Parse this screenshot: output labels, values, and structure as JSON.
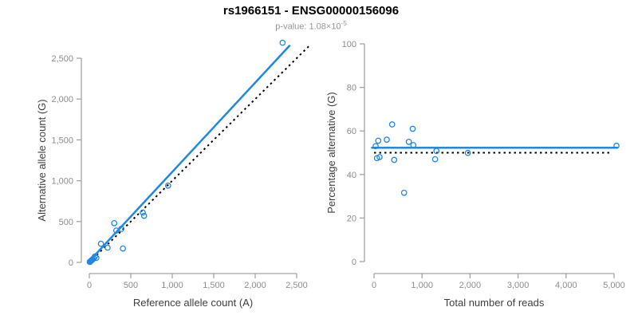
{
  "header": {
    "title": "rs1966151 - ENSG00000156096",
    "pvalue_prefix": "p-value: 1.08×10",
    "pvalue_exponent": "-5"
  },
  "style": {
    "accent_blue": "#1e87e5",
    "dotted_black": "#000000",
    "axis_gray": "#a3a3a3",
    "tick_label_gray": "#8c8c8c",
    "axis_title_color": "#3f3f3f",
    "subtitle_gray": "#969696"
  },
  "chart_data": [
    {
      "type": "scatter",
      "title": "",
      "xlabel": "Reference allele count (A)",
      "ylabel": "Alternative allele count (G)",
      "xlim": [
        0,
        2500
      ],
      "ylim": [
        0,
        2500
      ],
      "grid": false,
      "legend": "none",
      "xtick_values": [
        0,
        500,
        1000,
        1500,
        2000,
        2500
      ],
      "xtick_labels": [
        "0",
        "500",
        "1,000",
        "1,500",
        "2,000",
        "2,500"
      ],
      "ytick_values": [
        0,
        500,
        1000,
        1500,
        2000,
        2500
      ],
      "ytick_labels": [
        "0",
        "500",
        "1,000",
        "1,500",
        "2,000",
        "2,500"
      ],
      "points": [
        [
          5,
          6
        ],
        [
          10,
          9
        ],
        [
          16,
          15
        ],
        [
          22,
          21
        ],
        [
          30,
          28
        ],
        [
          40,
          36
        ],
        [
          52,
          50
        ],
        [
          68,
          72
        ],
        [
          85,
          55
        ],
        [
          140,
          228
        ],
        [
          220,
          180
        ],
        [
          300,
          480
        ],
        [
          325,
          390
        ],
        [
          385,
          410
        ],
        [
          405,
          170
        ],
        [
          645,
          610
        ],
        [
          660,
          570
        ],
        [
          950,
          940
        ],
        [
          2330,
          2690
        ]
      ],
      "lines": [
        {
          "name": "identity-line",
          "style": "dotted",
          "color": "#000000",
          "from": [
            0,
            0
          ],
          "to": [
            2660,
            2660
          ]
        },
        {
          "name": "regression-line",
          "style": "solid",
          "color": "#1e87e5",
          "from": [
            0,
            15
          ],
          "to": [
            2420,
            2660
          ]
        }
      ]
    },
    {
      "type": "scatter",
      "title": "",
      "xlabel": "Total number of reads",
      "ylabel": "Percentage alternative (G)",
      "xlim": [
        0,
        5000
      ],
      "ylim": [
        0,
        100
      ],
      "grid": false,
      "legend": "none",
      "xtick_values": [
        0,
        1000,
        2000,
        3000,
        4000,
        5000
      ],
      "xtick_labels": [
        "0",
        "1,000",
        "2,000",
        "3,000",
        "4,000",
        "5,000"
      ],
      "ytick_values": [
        0,
        20,
        40,
        60,
        80,
        100
      ],
      "ytick_labels": [
        "0",
        "20",
        "40",
        "60",
        "80",
        "100"
      ],
      "points": [
        [
          33,
          53
        ],
        [
          61,
          47.5
        ],
        [
          88,
          55.5
        ],
        [
          116,
          48
        ],
        [
          266,
          56
        ],
        [
          377,
          63
        ],
        [
          420,
          46.7
        ],
        [
          626,
          31.6
        ],
        [
          725,
          55
        ],
        [
          805,
          61
        ],
        [
          819,
          53.5
        ],
        [
          1273,
          47
        ],
        [
          1300,
          50.8
        ],
        [
          1954,
          49.9
        ],
        [
          5050,
          53.2
        ]
      ],
      "lines": [
        {
          "name": "identity-line",
          "style": "dotted",
          "color": "#000000",
          "from": [
            0,
            50
          ],
          "to": [
            4950,
            50
          ]
        },
        {
          "name": "regression-line",
          "style": "solid",
          "color": "#1e87e5",
          "from": [
            -60,
            52.3
          ],
          "to": [
            5080,
            52.3
          ]
        }
      ]
    }
  ]
}
